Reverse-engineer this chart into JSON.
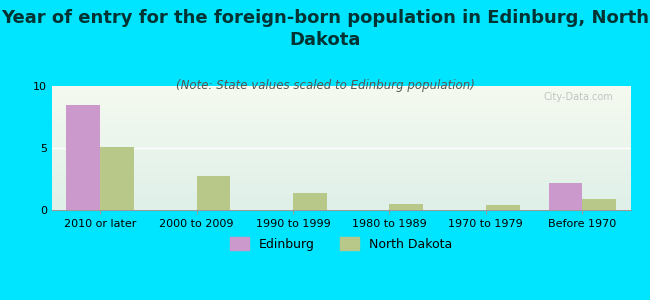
{
  "title": "Year of entry for the foreign-born population in Edinburg, North\nDakota",
  "subtitle": "(Note: State values scaled to Edinburg population)",
  "categories": [
    "2010 or later",
    "2000 to 2009",
    "1990 to 1999",
    "1980 to 1989",
    "1970 to 1979",
    "Before 1970"
  ],
  "edinburg_values": [
    8.4,
    0,
    0,
    0,
    0,
    2.2
  ],
  "nd_values": [
    5.1,
    2.7,
    1.4,
    0.5,
    0.4,
    0.9
  ],
  "edinburg_color": "#cc99cc",
  "nd_color": "#b8c888",
  "background_color": "#00e5ff",
  "plot_bg_top": "#f5faf0",
  "plot_bg_bottom": "#dff0e8",
  "ylim": [
    0,
    10
  ],
  "yticks": [
    0,
    5,
    10
  ],
  "bar_width": 0.35,
  "title_fontsize": 13,
  "subtitle_fontsize": 8.5,
  "tick_fontsize": 8,
  "legend_fontsize": 9,
  "title_color": "#003333",
  "subtitle_color": "#555555",
  "watermark_color": "#bbbbbb"
}
